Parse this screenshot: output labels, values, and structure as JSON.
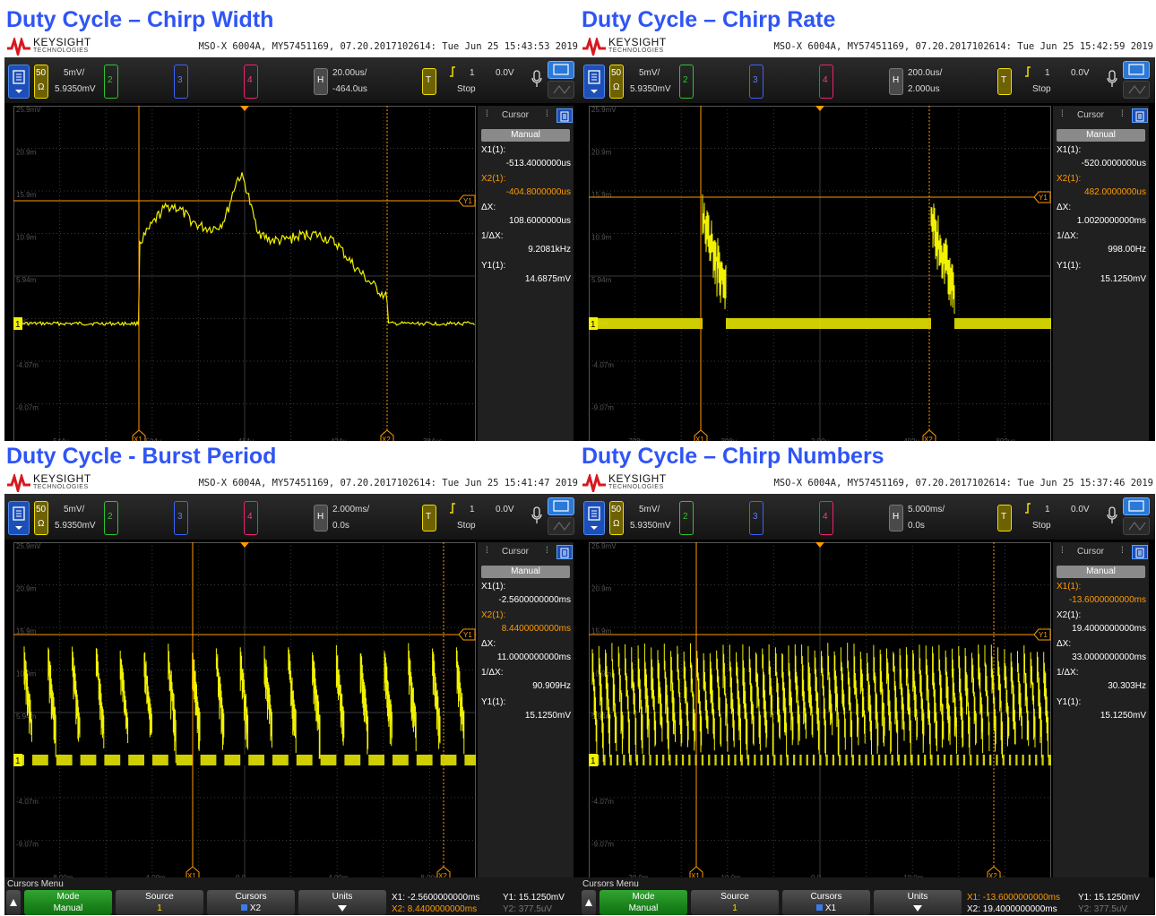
{
  "panels": [
    {
      "title": "Duty Cycle – Chirp Width",
      "brand": "KEYSIGHT",
      "brand_sub": "TECHNOLOGIES",
      "instrument": "MSO-X 6004A, MY57451169, 07.20.2017102614: Tue Jun 25 15:43:53 2019",
      "ch1_scale": "5mV/",
      "ch1_offset": "5.9350mV",
      "ch1_impedance": "50",
      "impedance_unit": "Ω",
      "ch_numbers": [
        "2",
        "3",
        "4"
      ],
      "horizontal_label": "H",
      "time_scale": "20.00us/",
      "time_delay": "-464.0us",
      "trigger_label": "T",
      "trigger_source": "1",
      "trigger_level": "0.0V",
      "run_state": "Stop",
      "y_labels": [
        "25.9mV",
        "20.9m",
        "15.9m",
        "10.9m",
        "5.94m",
        "935u",
        "-4.07m",
        "-9.07m"
      ],
      "x_labels": [
        "-544u",
        "-504u",
        "-464u",
        "-424u",
        "-384us"
      ],
      "side": {
        "title": "Cursor",
        "mode": "Manual",
        "x1_label": "X1(1):",
        "x1_value": "-513.4000000us",
        "x2_label": "X2(1):",
        "x2_value": "-404.8000000us",
        "dx_label": "ΔX:",
        "dx_value": "108.6000000us",
        "inv_label": "1/ΔX:",
        "inv_value": "9.2081kHz",
        "y1_label": "Y1(1):",
        "y1_value": "14.6875mV"
      },
      "cursor_tags": {
        "x1": "X1",
        "x2": "X2",
        "y1": "Y1"
      },
      "ch1_marker": "1",
      "colors": {
        "trace": "#f2f200",
        "cursor": "#ff9a00"
      }
    },
    {
      "title": "Duty Cycle – Chirp Rate",
      "brand": "KEYSIGHT",
      "brand_sub": "TECHNOLOGIES",
      "instrument": "MSO-X 6004A, MY57451169, 07.20.2017102614: Tue Jun 25 15:42:59 2019",
      "ch1_scale": "5mV/",
      "ch1_offset": "5.9350mV",
      "ch1_impedance": "50",
      "impedance_unit": "Ω",
      "ch_numbers": [
        "2",
        "3",
        "4"
      ],
      "horizontal_label": "H",
      "time_scale": "200.0us/",
      "time_delay": "2.000us",
      "trigger_label": "T",
      "trigger_source": "1",
      "trigger_level": "0.0V",
      "run_state": "Stop",
      "y_labels": [
        "25.9mV",
        "20.9m",
        "15.9m",
        "10.9m",
        "5.94m",
        "935u",
        "-4.07m",
        "-9.07m"
      ],
      "x_labels": [
        "-798u",
        "-398u",
        "2.00u",
        "402u",
        "802us"
      ],
      "side": {
        "title": "Cursor",
        "mode": "Manual",
        "x1_label": "X1(1):",
        "x1_value": "-520.0000000us",
        "x2_label": "X2(1):",
        "x2_value": "482.0000000us",
        "dx_label": "ΔX:",
        "dx_value": "1.0020000000ms",
        "inv_label": "1/ΔX:",
        "inv_value": "998.00Hz",
        "y1_label": "Y1(1):",
        "y1_value": "15.1250mV"
      },
      "cursor_tags": {
        "x1": "X1",
        "x2": "X2",
        "y1": "Y1"
      },
      "ch1_marker": "1",
      "colors": {
        "trace": "#f2f200",
        "cursor": "#ff9a00"
      }
    },
    {
      "title": "Duty Cycle - Burst Period",
      "brand": "KEYSIGHT",
      "brand_sub": "TECHNOLOGIES",
      "instrument": "MSO-X 6004A, MY57451169, 07.20.2017102614: Tue Jun 25 15:41:47 2019",
      "ch1_scale": "5mV/",
      "ch1_offset": "5.9350mV",
      "ch1_impedance": "50",
      "impedance_unit": "Ω",
      "ch_numbers": [
        "2",
        "3",
        "4"
      ],
      "horizontal_label": "H",
      "time_scale": "2.000ms/",
      "time_delay": "0.0s",
      "trigger_label": "T",
      "trigger_source": "1",
      "trigger_level": "0.0V",
      "run_state": "Stop",
      "y_labels": [
        "25.9mV",
        "20.9m",
        "15.9m",
        "10.9m",
        "5.94m",
        "935u",
        "-4.07m",
        "-9.07m"
      ],
      "x_labels": [
        "-8.00m",
        "-4.00m",
        "0.0",
        "4.00m",
        "8.00m"
      ],
      "side": {
        "title": "Cursor",
        "mode": "Manual",
        "x1_label": "X1(1):",
        "x1_value": "-2.5600000000ms",
        "x2_label": "X2(1):",
        "x2_value": "8.4400000000ms",
        "dx_label": "ΔX:",
        "dx_value": "11.0000000000ms",
        "inv_label": "1/ΔX:",
        "inv_value": "90.909Hz",
        "y1_label": "Y1(1):",
        "y1_value": "15.1250mV"
      },
      "cursor_tags": {
        "x1": "X1",
        "x2": "X2",
        "y1": "Y1"
      },
      "ch1_marker": "1",
      "colors": {
        "trace": "#f2f200",
        "cursor": "#ff9a00"
      },
      "softkeys": {
        "menu_title": "Cursors Menu",
        "mode_label": "Mode",
        "mode_value": "Manual",
        "source_label": "Source",
        "source_value": "1",
        "cursors_label": "Cursors",
        "cursors_value": "X2",
        "units_label": "Units",
        "x1_readout": "X1: -2.5600000000ms",
        "x2_readout": "X2: 8.4400000000ms",
        "y1_readout": "Y1: 15.1250mV",
        "y2_readout": "Y2: 377.5uV"
      }
    },
    {
      "title": "Duty Cycle – Chirp Numbers",
      "brand": "KEYSIGHT",
      "brand_sub": "TECHNOLOGIES",
      "instrument": "MSO-X 6004A, MY57451169, 07.20.2017102614: Tue Jun 25 15:37:46 2019",
      "ch1_scale": "5mV/",
      "ch1_offset": "5.9350mV",
      "ch1_impedance": "50",
      "impedance_unit": "Ω",
      "ch_numbers": [
        "2",
        "3",
        "4"
      ],
      "horizontal_label": "H",
      "time_scale": "5.000ms/",
      "time_delay": "0.0s",
      "trigger_label": "T",
      "trigger_source": "1",
      "trigger_level": "0.0V",
      "run_state": "Stop",
      "y_labels": [
        "25.9mV",
        "20.9m",
        "15.9m",
        "10.9m",
        "5.94m",
        "935u",
        "-4.07m",
        "-9.07m"
      ],
      "x_labels": [
        "-20.0m",
        "-10.0m",
        "0.0",
        "10.0m",
        "ms"
      ],
      "side": {
        "title": "Cursor",
        "mode": "Manual",
        "x1_label": "X1(1):",
        "x1_value": "-13.6000000000ms",
        "x2_label": "X2(1):",
        "x2_value": "19.4000000000ms",
        "dx_label": "ΔX:",
        "dx_value": "33.0000000000ms",
        "inv_label": "1/ΔX:",
        "inv_value": "30.303Hz",
        "y1_label": "Y1(1):",
        "y1_value": "15.1250mV"
      },
      "cursor_tags": {
        "x1": "X1",
        "x2": "X2",
        "y1": "Y1"
      },
      "ch1_marker": "1",
      "colors": {
        "trace": "#f2f200",
        "cursor": "#ff9a00"
      },
      "softkeys": {
        "menu_title": "Cursors Menu",
        "mode_label": "Mode",
        "mode_value": "Manual",
        "source_label": "Source",
        "source_value": "1",
        "cursors_label": "Cursors",
        "cursors_value": "X1",
        "units_label": "Units",
        "x1_readout": "X1: -13.6000000000ms",
        "x2_readout": "X2: 19.4000000000ms",
        "y1_readout": "Y1: 15.1250mV",
        "y2_readout": "Y2: 377.5uV"
      }
    }
  ]
}
